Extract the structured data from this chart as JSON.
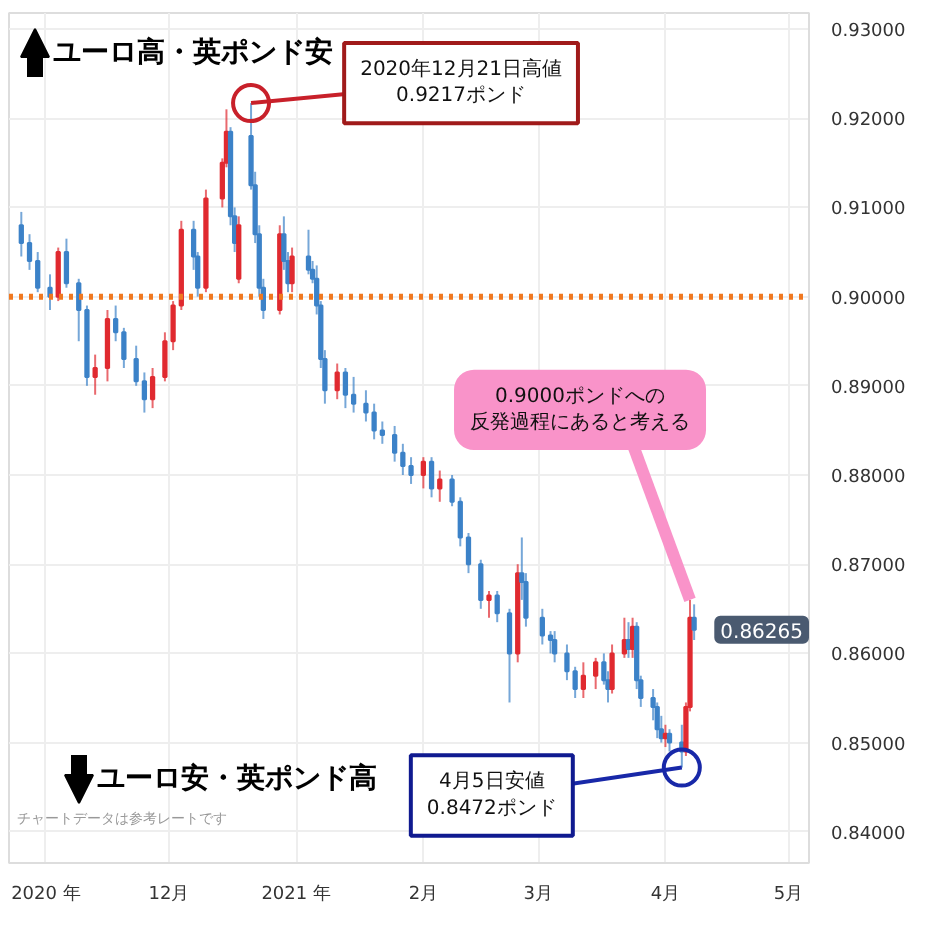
{
  "chart_data": {
    "type": "candlestick",
    "x": [
      "2020-10-26",
      "2020-10-28",
      "2020-10-30",
      "2020-11-02",
      "2020-11-04",
      "2020-11-06",
      "2020-11-09",
      "2020-11-11",
      "2020-11-13",
      "2020-11-16",
      "2020-11-18",
      "2020-11-20",
      "2020-11-23",
      "2020-11-25",
      "2020-11-27",
      "2020-11-30",
      "2020-12-02",
      "2020-12-04",
      "2020-12-07",
      "2020-12-08",
      "2020-12-10",
      "2020-12-14",
      "2020-12-15",
      "2020-12-16",
      "2020-12-17",
      "2020-12-18",
      "2020-12-21",
      "2020-12-22",
      "2020-12-23",
      "2020-12-24",
      "2020-12-28",
      "2020-12-29",
      "2020-12-30",
      "2020-12-31",
      "2021-01-04",
      "2021-01-05",
      "2021-01-06",
      "2021-01-07",
      "2021-01-08",
      "2021-01-11",
      "2021-01-13",
      "2021-01-15",
      "2021-01-18",
      "2021-01-20",
      "2021-01-22",
      "2021-01-25",
      "2021-01-27",
      "2021-01-29",
      "2021-02-01",
      "2021-02-03",
      "2021-02-05",
      "2021-02-08",
      "2021-02-10",
      "2021-02-12",
      "2021-02-15",
      "2021-02-17",
      "2021-02-19",
      "2021-02-22",
      "2021-02-24",
      "2021-02-25",
      "2021-02-26",
      "2021-03-02",
      "2021-03-04",
      "2021-03-05",
      "2021-03-08",
      "2021-03-10",
      "2021-03-12",
      "2021-03-15",
      "2021-03-17",
      "2021-03-18",
      "2021-03-19",
      "2021-03-22",
      "2021-03-23",
      "2021-03-24",
      "2021-03-25",
      "2021-03-26",
      "2021-03-29",
      "2021-03-30",
      "2021-03-31",
      "2021-04-01",
      "2021-04-02",
      "2021-04-05",
      "2021-04-06",
      "2021-04-07",
      "2021-04-08"
    ],
    "ohlc": [
      [
        0.908,
        0.9095,
        0.9045,
        0.906
      ],
      [
        0.906,
        0.907,
        0.903,
        0.904
      ],
      [
        0.904,
        0.905,
        0.9005,
        0.901
      ],
      [
        0.901,
        0.9025,
        0.8985,
        0.9
      ],
      [
        0.9,
        0.9055,
        0.8995,
        0.905
      ],
      [
        0.905,
        0.9065,
        0.901,
        0.9015
      ],
      [
        0.9015,
        0.902,
        0.895,
        0.8985
      ],
      [
        0.8985,
        0.899,
        0.89,
        0.891
      ],
      [
        0.891,
        0.8935,
        0.889,
        0.892
      ],
      [
        0.892,
        0.8985,
        0.8905,
        0.8975
      ],
      [
        0.8975,
        0.899,
        0.895,
        0.896
      ],
      [
        0.896,
        0.8965,
        0.892,
        0.893
      ],
      [
        0.893,
        0.8945,
        0.89,
        0.8905
      ],
      [
        0.8905,
        0.8915,
        0.887,
        0.8885
      ],
      [
        0.8885,
        0.892,
        0.8875,
        0.891
      ],
      [
        0.891,
        0.896,
        0.8905,
        0.895
      ],
      [
        0.895,
        0.8995,
        0.894,
        0.899
      ],
      [
        0.899,
        0.9085,
        0.8985,
        0.9075
      ],
      [
        0.9075,
        0.9085,
        0.903,
        0.9045
      ],
      [
        0.9045,
        0.905,
        0.9,
        0.901
      ],
      [
        0.901,
        0.912,
        0.9005,
        0.911
      ],
      [
        0.911,
        0.9155,
        0.91,
        0.915
      ],
      [
        0.915,
        0.921,
        0.9145,
        0.9185
      ],
      [
        0.9185,
        0.919,
        0.908,
        0.909
      ],
      [
        0.909,
        0.91,
        0.905,
        0.906
      ],
      [
        0.902,
        0.909,
        0.9015,
        0.908
      ],
      [
        0.918,
        0.9217,
        0.912,
        0.9125
      ],
      [
        0.9125,
        0.914,
        0.906,
        0.907
      ],
      [
        0.907,
        0.908,
        0.9,
        0.901
      ],
      [
        0.901,
        0.902,
        0.8975,
        0.8985
      ],
      [
        0.8985,
        0.908,
        0.898,
        0.907
      ],
      [
        0.907,
        0.909,
        0.903,
        0.904
      ],
      [
        0.904,
        0.905,
        0.9005,
        0.9015
      ],
      [
        0.9015,
        0.9055,
        0.9005,
        0.9045
      ],
      [
        0.9045,
        0.9075,
        0.9025,
        0.903
      ],
      [
        0.903,
        0.904,
        0.9015,
        0.902
      ],
      [
        0.902,
        0.9035,
        0.898,
        0.899
      ],
      [
        0.899,
        0.8995,
        0.892,
        0.893
      ],
      [
        0.893,
        0.894,
        0.888,
        0.8895
      ],
      [
        0.8895,
        0.8925,
        0.8885,
        0.8915
      ],
      [
        0.8915,
        0.892,
        0.8875,
        0.889
      ],
      [
        0.889,
        0.891,
        0.887,
        0.888
      ],
      [
        0.888,
        0.8895,
        0.886,
        0.887
      ],
      [
        0.887,
        0.888,
        0.884,
        0.885
      ],
      [
        0.885,
        0.886,
        0.8835,
        0.8845
      ],
      [
        0.8845,
        0.8855,
        0.8815,
        0.8825
      ],
      [
        0.8825,
        0.8835,
        0.88,
        0.881
      ],
      [
        0.881,
        0.882,
        0.879,
        0.88
      ],
      [
        0.88,
        0.882,
        0.8785,
        0.8815
      ],
      [
        0.8815,
        0.882,
        0.8775,
        0.8785
      ],
      [
        0.8785,
        0.8805,
        0.877,
        0.8795
      ],
      [
        0.8795,
        0.88,
        0.8765,
        0.877
      ],
      [
        0.877,
        0.8775,
        0.872,
        0.873
      ],
      [
        0.873,
        0.8735,
        0.869,
        0.87
      ],
      [
        0.87,
        0.8705,
        0.865,
        0.866
      ],
      [
        0.866,
        0.867,
        0.864,
        0.8665
      ],
      [
        0.8665,
        0.867,
        0.8635,
        0.8645
      ],
      [
        0.8645,
        0.865,
        0.8545,
        0.86
      ],
      [
        0.86,
        0.87,
        0.859,
        0.869
      ],
      [
        0.869,
        0.873,
        0.866,
        0.868
      ],
      [
        0.868,
        0.869,
        0.863,
        0.864
      ],
      [
        0.864,
        0.865,
        0.861,
        0.862
      ],
      [
        0.862,
        0.8625,
        0.86,
        0.8615
      ],
      [
        0.8615,
        0.8625,
        0.859,
        0.86
      ],
      [
        0.86,
        0.861,
        0.857,
        0.858
      ],
      [
        0.858,
        0.8585,
        0.855,
        0.856
      ],
      [
        0.856,
        0.859,
        0.855,
        0.8575
      ],
      [
        0.8575,
        0.8595,
        0.856,
        0.859
      ],
      [
        0.859,
        0.86,
        0.8565,
        0.857
      ],
      [
        0.857,
        0.858,
        0.8545,
        0.856
      ],
      [
        0.856,
        0.861,
        0.8555,
        0.86
      ],
      [
        0.86,
        0.864,
        0.8595,
        0.8615
      ],
      [
        0.8615,
        0.8635,
        0.8595,
        0.8605
      ],
      [
        0.8605,
        0.864,
        0.8595,
        0.863
      ],
      [
        0.863,
        0.8635,
        0.856,
        0.857
      ],
      [
        0.857,
        0.8575,
        0.854,
        0.855
      ],
      [
        0.855,
        0.856,
        0.8525,
        0.854
      ],
      [
        0.854,
        0.8545,
        0.8505,
        0.8515
      ],
      [
        0.8515,
        0.853,
        0.85,
        0.8505
      ],
      [
        0.8505,
        0.852,
        0.8495,
        0.851
      ],
      [
        0.851,
        0.8515,
        0.849,
        0.85
      ],
      [
        0.85,
        0.852,
        0.8472,
        0.849
      ],
      [
        0.849,
        0.8545,
        0.8485,
        0.854
      ],
      [
        0.854,
        0.866,
        0.8535,
        0.864
      ],
      [
        0.864,
        0.8655,
        0.8615,
        0.86265
      ]
    ],
    "xlim": [
      "2020-10-23",
      "2021-05-06"
    ],
    "xticks": [
      {
        "value": "2020-11-01",
        "label": "2020 年"
      },
      {
        "value": "2020-12-01",
        "label": "12月"
      },
      {
        "value": "2021-01-01",
        "label": "2021 年"
      },
      {
        "value": "2021-02-01",
        "label": "2月"
      },
      {
        "value": "2021-03-01",
        "label": "3月"
      },
      {
        "value": "2021-04-01",
        "label": "4月"
      },
      {
        "value": "2021-05-01",
        "label": "5月"
      }
    ],
    "ylim": [
      0.8365,
      0.9318
    ],
    "yticks": [
      {
        "value": 0.84,
        "label": "0.84000"
      },
      {
        "value": 0.85,
        "label": "0.85000"
      },
      {
        "value": 0.86,
        "label": "0.86000"
      },
      {
        "value": 0.87,
        "label": "0.87000"
      },
      {
        "value": 0.88,
        "label": "0.88000"
      },
      {
        "value": 0.89,
        "label": "0.89000"
      },
      {
        "value": 0.9,
        "label": "0.90000"
      },
      {
        "value": 0.91,
        "label": "0.91000"
      },
      {
        "value": 0.92,
        "label": "0.92000"
      },
      {
        "value": 0.93,
        "label": "0.93000"
      }
    ],
    "grid": true,
    "ref_lines": [
      {
        "axis": "y",
        "value": 0.9,
        "color": "#f07820",
        "line_style": "dotted"
      }
    ],
    "annotations": [
      "ユーロ高・英ポンド安",
      "ユーロ安・英ポンド高",
      "チャートデータは参考レートです",
      {
        "text": "2020年12月21日高値\n0.9217ポンド",
        "x": "2020-12-21",
        "y": 0.9217
      },
      {
        "text": "4月5日安値\n0.8472ポンド",
        "x": "2021-04-05",
        "y": 0.8472
      },
      {
        "text": "0.9000ポンドへの反発過程にあると考える",
        "x": "2021-04-07",
        "y": 0.866
      },
      {
        "text": "0.86265",
        "x": "2021-04-08",
        "y": 0.86265
      }
    ]
  }
}
